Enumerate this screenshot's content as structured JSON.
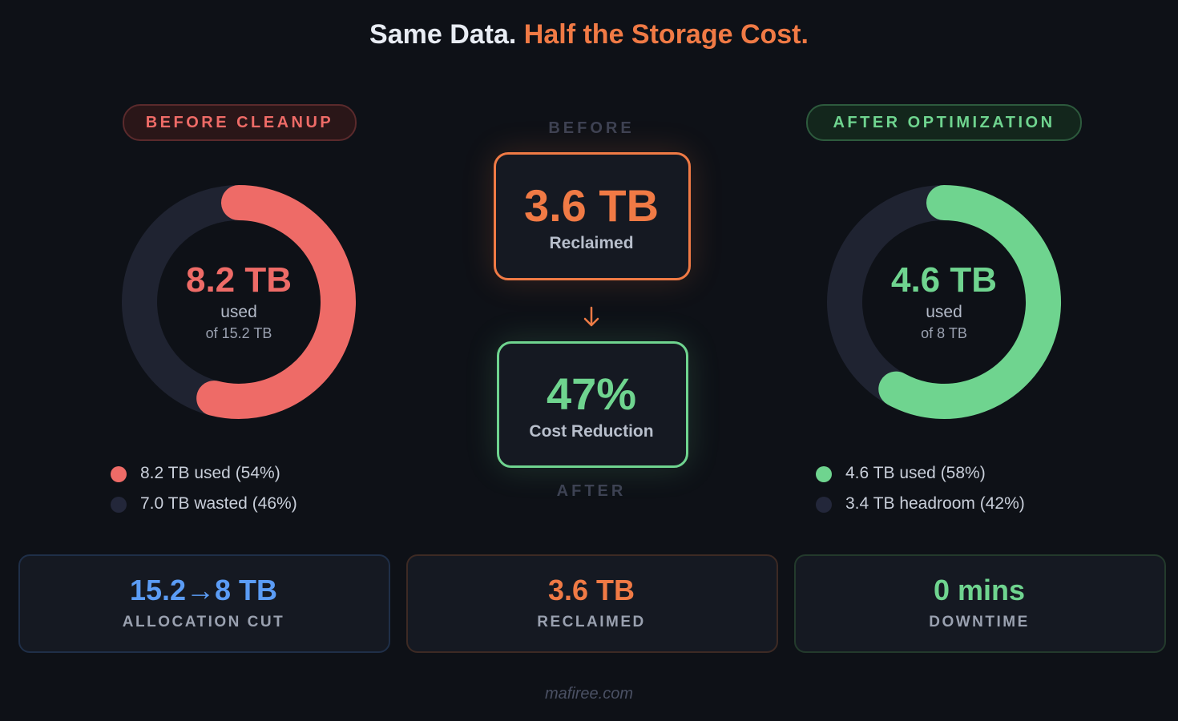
{
  "title": {
    "lead": "Same Data.",
    "accent": "Half the Storage Cost."
  },
  "chart_data": [
    {
      "type": "donut",
      "badge": "BEFORE CLEANUP",
      "center_value": "8.2 TB",
      "center_label": "used",
      "center_sub": "of 15.2 TB",
      "categories": [
        "8.2 TB used (54%)",
        "7.0 TB wasted (46%)"
      ],
      "values": [
        54,
        46
      ],
      "colors": [
        "#ee6b67",
        "#1f2331"
      ]
    },
    {
      "type": "donut",
      "badge": "AFTER OPTIMIZATION",
      "center_value": "4.6 TB",
      "center_label": "used",
      "center_sub": "of 8 TB",
      "categories": [
        "4.6 TB used (58%)",
        "3.4 TB headroom (42%)"
      ],
      "values": [
        58,
        42
      ],
      "colors": [
        "#6fd48f",
        "#1f2331"
      ]
    }
  ],
  "middle": {
    "before": "BEFORE",
    "after": "AFTER",
    "reclaimed": {
      "value": "3.6 TB",
      "label": "Reclaimed"
    },
    "reduction": {
      "value": "47%",
      "label": "Cost Reduction"
    }
  },
  "cards": [
    {
      "value": "15.2→8 TB",
      "label": "ALLOCATION CUT"
    },
    {
      "value": "3.6 TB",
      "label": "RECLAIMED"
    },
    {
      "value": "0 mins",
      "label": "DOWNTIME"
    }
  ],
  "footer": "mafiree.com"
}
